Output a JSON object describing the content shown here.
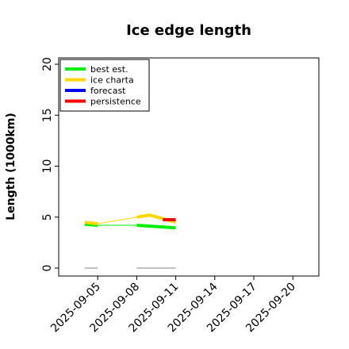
{
  "chart_data": {
    "type": "line",
    "title": "Ice edge length",
    "ylabel": "Length (1000km)",
    "xlabel": "",
    "ylim": [
      0,
      20
    ],
    "yticks": [
      0,
      5,
      10,
      15,
      20
    ],
    "xlim": [
      "2025-09-02",
      "2025-09-22"
    ],
    "xticks": [
      {
        "label": "2025-09-05",
        "color": "#000000"
      },
      {
        "label": "2025-09-08",
        "color": "#000000"
      },
      {
        "label": "2025-09-11",
        "color": "#228b22"
      },
      {
        "label": "2025-09-14",
        "color": "#000000"
      },
      {
        "label": "2025-09-17",
        "color": "#000000"
      },
      {
        "label": "2025-09-20",
        "color": "#000000"
      }
    ],
    "legend": {
      "placement": "top-left",
      "entries": [
        {
          "name": "best est.",
          "color": "#00ee00"
        },
        {
          "name": "ice charta",
          "color": "#ffd700"
        },
        {
          "name": "forecast",
          "color": "#0000ff"
        },
        {
          "name": "persistence",
          "color": "#ff0000"
        }
      ]
    },
    "series": [
      {
        "name": "best est.",
        "color": "#00ee00",
        "thick": true,
        "points": [
          [
            "2025-09-04",
            4.3
          ],
          [
            "2025-09-05",
            4.2
          ]
        ]
      },
      {
        "name": "best est.",
        "color": "#00ee00",
        "thick": true,
        "points": [
          [
            "2025-09-08",
            4.2
          ],
          [
            "2025-09-11",
            3.95
          ]
        ]
      },
      {
        "name": "best est.",
        "color": "#00ee00",
        "thick": false,
        "points": [
          [
            "2025-09-05",
            4.2
          ],
          [
            "2025-09-08",
            4.2
          ]
        ]
      },
      {
        "name": "ice charta",
        "color": "#ffd700",
        "thick": true,
        "points": [
          [
            "2025-09-04",
            4.5
          ],
          [
            "2025-09-05",
            4.35
          ]
        ]
      },
      {
        "name": "ice charta",
        "color": "#ffd700",
        "thick": true,
        "points": [
          [
            "2025-09-08",
            5.0
          ],
          [
            "2025-09-09",
            5.2
          ],
          [
            "2025-09-10",
            4.85
          ],
          [
            "2025-09-11",
            4.5
          ]
        ]
      },
      {
        "name": "ice charta",
        "color": "#ffd700",
        "thick": false,
        "points": [
          [
            "2025-09-05",
            4.35
          ],
          [
            "2025-09-08",
            5.0
          ]
        ]
      },
      {
        "name": "persistence",
        "color": "#ff0000",
        "thick": true,
        "points": [
          [
            "2025-09-10",
            4.75
          ],
          [
            "2025-09-11",
            4.75
          ]
        ]
      },
      {
        "name": "",
        "color": "#808080",
        "thick": false,
        "points": [
          [
            "2025-09-04",
            0
          ],
          [
            "2025-09-05",
            0
          ]
        ]
      },
      {
        "name": "",
        "color": "#808080",
        "thick": false,
        "points": [
          [
            "2025-09-08",
            0
          ],
          [
            "2025-09-11",
            0
          ]
        ]
      }
    ]
  }
}
